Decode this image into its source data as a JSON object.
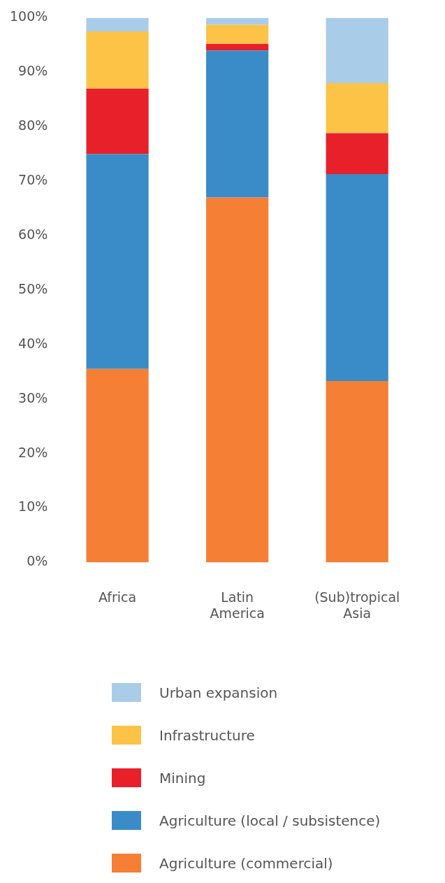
{
  "chart_data": {
    "type": "bar",
    "stacked": true,
    "categories": [
      "Africa",
      "Latin America",
      "(Sub)tropical Asia"
    ],
    "series": [
      {
        "name": "Agriculture (commercial)",
        "color": "#f47f35",
        "values": [
          35.5,
          67,
          33.3
        ]
      },
      {
        "name": "Agriculture (local / subsistence)",
        "color": "#3a8cc9",
        "values": [
          39.5,
          27,
          38
        ]
      },
      {
        "name": "Mining",
        "color": "#e8202a",
        "values": [
          12,
          1.2,
          7.5
        ]
      },
      {
        "name": "Infrastructure",
        "color": "#fcc347",
        "values": [
          10.5,
          3.5,
          9.2
        ]
      },
      {
        "name": "Urban expansion",
        "color": "#a9cce8",
        "values": [
          2.5,
          1.3,
          12
        ]
      }
    ],
    "ylim": [
      0,
      100
    ],
    "yticks": [
      {
        "value": 0,
        "label": "0%"
      },
      {
        "value": 10,
        "label": "10%"
      },
      {
        "value": 20,
        "label": "20%"
      },
      {
        "value": 30,
        "label": "30%"
      },
      {
        "value": 40,
        "label": "40%"
      },
      {
        "value": 50,
        "label": "50%"
      },
      {
        "value": 60,
        "label": "60%"
      },
      {
        "value": 70,
        "label": "70%"
      },
      {
        "value": 80,
        "label": "80%"
      },
      {
        "value": 90,
        "label": "90%"
      },
      {
        "value": 100,
        "label": "100%"
      }
    ],
    "grid": false,
    "legend": "bottom"
  }
}
